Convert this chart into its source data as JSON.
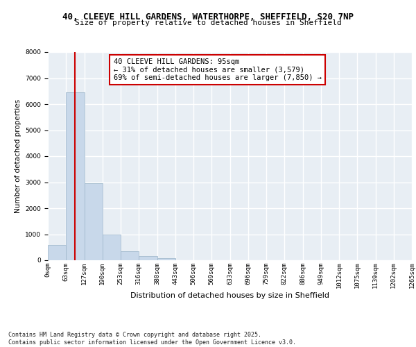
{
  "title_line1": "40, CLEEVE HILL GARDENS, WATERTHORPE, SHEFFIELD, S20 7NP",
  "title_line2": "Size of property relative to detached houses in Sheffield",
  "xlabel": "Distribution of detached houses by size in Sheffield",
  "ylabel": "Number of detached properties",
  "bar_values": [
    600,
    6450,
    2960,
    975,
    360,
    165,
    90,
    0,
    0,
    0,
    0,
    0,
    0,
    0,
    0,
    0,
    0,
    0,
    0,
    0
  ],
  "bin_labels": [
    "0sqm",
    "63sqm",
    "127sqm",
    "190sqm",
    "253sqm",
    "316sqm",
    "380sqm",
    "443sqm",
    "506sqm",
    "569sqm",
    "633sqm",
    "696sqm",
    "759sqm",
    "822sqm",
    "886sqm",
    "949sqm",
    "1012sqm",
    "1075sqm",
    "1139sqm",
    "1202sqm",
    "1265sqm"
  ],
  "bar_color": "#c8d8ea",
  "bar_edgecolor": "#9ab4c8",
  "vline_color": "#cc0000",
  "annotation_text": "40 CLEEVE HILL GARDENS: 95sqm\n← 31% of detached houses are smaller (3,579)\n69% of semi-detached houses are larger (7,850) →",
  "annotation_box_color": "#ffffff",
  "annotation_box_edgecolor": "#cc0000",
  "ylim": [
    0,
    8000
  ],
  "yticks": [
    0,
    1000,
    2000,
    3000,
    4000,
    5000,
    6000,
    7000,
    8000
  ],
  "background_color": "#e8eef4",
  "grid_color": "#ffffff",
  "footer_text": "Contains HM Land Registry data © Crown copyright and database right 2025.\nContains public sector information licensed under the Open Government Licence v3.0.",
  "title_fontsize": 9,
  "title2_fontsize": 8,
  "axis_label_fontsize": 8,
  "tick_fontsize": 6.5,
  "annotation_fontsize": 7.5,
  "ylabel_fontsize": 7.5,
  "footer_fontsize": 6
}
